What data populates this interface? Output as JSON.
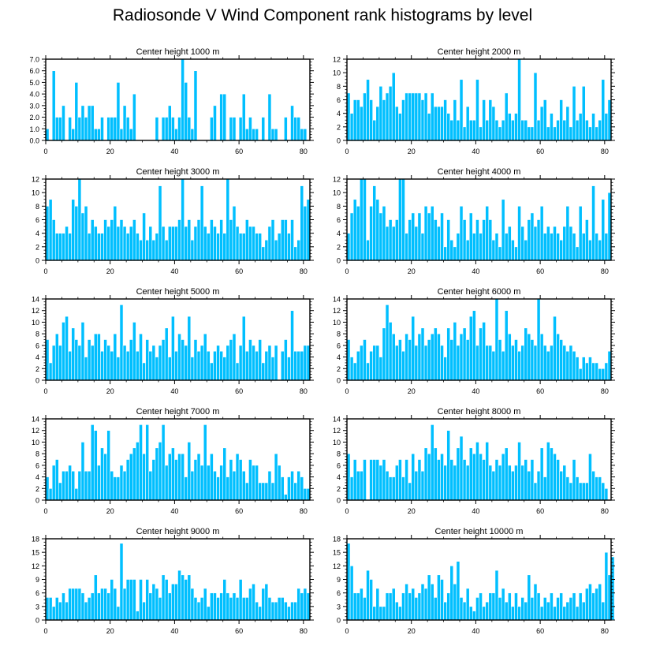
{
  "title": "Radiosonde V Wind Component rank histograms by level",
  "colors": {
    "bar": "#00bfff",
    "bar_edge": "#ffffff",
    "axis": "#000000",
    "background": "#ffffff"
  },
  "chart_data": [
    {
      "type": "bar",
      "title": "Center height 1000 m",
      "xlim": [
        0,
        82
      ],
      "ylim": [
        0,
        7
      ],
      "xticks": [
        0,
        20,
        40,
        60,
        80
      ],
      "yticks": [
        0,
        1,
        2,
        3,
        4,
        5,
        6,
        7
      ],
      "ytick_labels": [
        "0.0",
        "1.0",
        "2.0",
        "3.0",
        "4.0",
        "5.0",
        "6.0",
        "7.0"
      ],
      "values": [
        1,
        0,
        6,
        2,
        2,
        3,
        0,
        2,
        1,
        5,
        2,
        3,
        2,
        3,
        3,
        1,
        1,
        2,
        0,
        2,
        2,
        2,
        5,
        1,
        3,
        2,
        1,
        4,
        0,
        0,
        0,
        0,
        0,
        0,
        2,
        0,
        2,
        2,
        3,
        2,
        1,
        2,
        7,
        5,
        2,
        1,
        6,
        0,
        0,
        0,
        0,
        2,
        3,
        0,
        4,
        4,
        0,
        2,
        2,
        0,
        2,
        4,
        1,
        2,
        1,
        1,
        0,
        2,
        0,
        4,
        1,
        1,
        0,
        0,
        2,
        0,
        3,
        2,
        2,
        1,
        1
      ]
    },
    {
      "type": "bar",
      "title": "Center height 2000 m",
      "xlim": [
        0,
        82
      ],
      "ylim": [
        0,
        12
      ],
      "xticks": [
        0,
        20,
        40,
        60,
        80
      ],
      "yticks": [
        0,
        2,
        4,
        6,
        8,
        10,
        12
      ],
      "ytick_labels": [
        "0",
        "2",
        "4",
        "6",
        "8",
        "10",
        "12"
      ],
      "values": [
        7,
        4,
        6,
        6,
        5,
        7,
        9,
        6,
        3,
        5,
        8,
        6,
        7,
        8,
        10,
        5,
        4,
        6,
        7,
        7,
        7,
        7,
        7,
        6,
        7,
        4,
        7,
        5,
        5,
        5,
        6,
        4,
        3,
        6,
        3,
        9,
        2,
        5,
        3,
        3,
        9,
        2,
        6,
        3,
        6,
        5,
        3,
        2,
        3,
        7,
        4,
        3,
        4,
        12,
        3,
        3,
        2,
        2,
        10,
        3,
        5,
        6,
        2,
        4,
        2,
        3,
        6,
        3,
        5,
        2,
        8,
        3,
        4,
        8,
        3,
        2,
        4,
        2,
        3,
        9,
        4,
        6
      ]
    },
    {
      "type": "bar",
      "title": "Center height 3000 m",
      "xlim": [
        0,
        82
      ],
      "ylim": [
        0,
        12
      ],
      "xticks": [
        0,
        20,
        40,
        60,
        80
      ],
      "yticks": [
        0,
        2,
        4,
        6,
        8,
        10,
        12
      ],
      "ytick_labels": [
        "0",
        "2",
        "4",
        "6",
        "8",
        "10",
        "12"
      ],
      "values": [
        8,
        9,
        6,
        4,
        4,
        4,
        5,
        4,
        9,
        8,
        12,
        7,
        8,
        4,
        6,
        5,
        4,
        4,
        6,
        5,
        6,
        8,
        5,
        6,
        5,
        4,
        5,
        6,
        4,
        3,
        7,
        3,
        5,
        3,
        4,
        11,
        5,
        3,
        5,
        5,
        5,
        6,
        12,
        5,
        6,
        3,
        5,
        6,
        11,
        5,
        4,
        6,
        5,
        4,
        6,
        4,
        12,
        6,
        8,
        5,
        4,
        4,
        6,
        5,
        5,
        4,
        4,
        2,
        3,
        5,
        6,
        3,
        4,
        6,
        6,
        4,
        6,
        2,
        3,
        11,
        8,
        9
      ]
    },
    {
      "type": "bar",
      "title": "Center height 4000 m",
      "xlim": [
        0,
        82
      ],
      "ylim": [
        0,
        12
      ],
      "xticks": [
        0,
        20,
        40,
        60,
        80
      ],
      "yticks": [
        0,
        2,
        4,
        6,
        8,
        10,
        12
      ],
      "ytick_labels": [
        "0",
        "2",
        "4",
        "6",
        "8",
        "10",
        "12"
      ],
      "values": [
        4,
        7,
        9,
        8,
        12,
        12,
        3,
        8,
        11,
        9,
        7,
        8,
        5,
        6,
        5,
        6,
        12,
        12,
        4,
        6,
        7,
        5,
        7,
        4,
        8,
        7,
        8,
        6,
        5,
        7,
        2,
        6,
        3,
        2,
        4,
        8,
        6,
        3,
        7,
        4,
        6,
        4,
        6,
        8,
        6,
        3,
        4,
        2,
        9,
        4,
        5,
        3,
        2,
        8,
        5,
        3,
        6,
        7,
        5,
        6,
        8,
        4,
        5,
        4,
        5,
        4,
        3,
        5,
        8,
        5,
        4,
        2,
        8,
        4,
        6,
        3,
        11,
        4,
        3,
        9,
        4,
        10
      ]
    },
    {
      "type": "bar",
      "title": "Center height 5000 m",
      "xlim": [
        0,
        82
      ],
      "ylim": [
        0,
        14
      ],
      "xticks": [
        0,
        20,
        40,
        60,
        80
      ],
      "yticks": [
        0,
        2,
        4,
        6,
        8,
        10,
        12,
        14
      ],
      "ytick_labels": [
        "0",
        "2",
        "4",
        "6",
        "8",
        "10",
        "12",
        "14"
      ],
      "values": [
        7,
        3,
        6,
        8,
        6,
        10,
        11,
        5,
        9,
        7,
        6,
        10,
        4,
        7,
        6,
        8,
        8,
        5,
        7,
        6,
        5,
        8,
        4,
        13,
        6,
        5,
        7,
        10,
        5,
        8,
        3,
        7,
        5,
        6,
        4,
        6,
        7,
        9,
        4,
        11,
        5,
        8,
        7,
        6,
        11,
        4,
        7,
        5,
        6,
        8,
        5,
        3,
        5,
        6,
        5,
        4,
        6,
        7,
        8,
        3,
        6,
        11,
        5,
        7,
        6,
        5,
        7,
        3,
        5,
        6,
        4,
        6,
        0,
        5,
        7,
        4,
        12,
        5,
        5,
        5,
        6,
        6
      ]
    },
    {
      "type": "bar",
      "title": "Center height 6000 m",
      "xlim": [
        0,
        82
      ],
      "ylim": [
        0,
        14
      ],
      "xticks": [
        0,
        20,
        40,
        60,
        80
      ],
      "yticks": [
        0,
        2,
        4,
        6,
        8,
        10,
        12,
        14
      ],
      "ytick_labels": [
        "0",
        "2",
        "4",
        "6",
        "8",
        "10",
        "12",
        "14"
      ],
      "values": [
        7,
        4,
        3,
        5,
        6,
        7,
        3,
        5,
        6,
        6,
        4,
        9,
        13,
        10,
        8,
        6,
        7,
        5,
        8,
        7,
        11,
        6,
        8,
        9,
        6,
        7,
        8,
        9,
        8,
        6,
        4,
        9,
        7,
        10,
        6,
        8,
        9,
        7,
        11,
        12,
        6,
        9,
        10,
        6,
        6,
        5,
        14,
        7,
        5,
        12,
        8,
        6,
        7,
        5,
        6,
        9,
        8,
        7,
        6,
        14,
        8,
        6,
        5,
        6,
        11,
        8,
        7,
        6,
        5,
        6,
        5,
        4,
        2,
        4,
        3,
        4,
        3,
        3,
        2,
        2,
        3,
        5
      ]
    },
    {
      "type": "bar",
      "title": "Center height 7000 m",
      "xlim": [
        0,
        82
      ],
      "ylim": [
        0,
        14
      ],
      "xticks": [
        0,
        20,
        40,
        60,
        80
      ],
      "yticks": [
        0,
        2,
        4,
        6,
        8,
        10,
        12,
        14
      ],
      "ytick_labels": [
        "0",
        "2",
        "4",
        "6",
        "8",
        "10",
        "12",
        "14"
      ],
      "values": [
        4,
        2,
        6,
        7,
        3,
        5,
        5,
        6,
        5,
        2,
        5,
        10,
        5,
        5,
        13,
        12,
        6,
        9,
        8,
        12,
        5,
        4,
        4,
        6,
        5,
        7,
        8,
        9,
        10,
        13,
        8,
        13,
        5,
        7,
        9,
        10,
        13,
        6,
        8,
        9,
        7,
        8,
        8,
        4,
        10,
        5,
        7,
        8,
        6,
        13,
        6,
        8,
        5,
        4,
        6,
        9,
        4,
        7,
        5,
        8,
        7,
        5,
        3,
        7,
        6,
        6,
        3,
        3,
        3,
        5,
        3,
        8,
        6,
        4,
        1,
        4,
        5,
        3,
        5,
        4,
        2,
        2
      ]
    },
    {
      "type": "bar",
      "title": "Center height 8000 m",
      "xlim": [
        0,
        82
      ],
      "ylim": [
        0,
        14
      ],
      "xticks": [
        0,
        20,
        40,
        60,
        80
      ],
      "yticks": [
        0,
        2,
        4,
        6,
        8,
        10,
        12,
        14
      ],
      "ytick_labels": [
        "0",
        "2",
        "4",
        "6",
        "8",
        "10",
        "12",
        "14"
      ],
      "values": [
        8,
        4,
        7,
        5,
        5,
        7,
        0,
        7,
        7,
        7,
        6,
        7,
        5,
        4,
        4,
        6,
        7,
        4,
        7,
        3,
        8,
        5,
        7,
        5,
        9,
        8,
        13,
        9,
        7,
        8,
        6,
        12,
        7,
        6,
        9,
        11,
        7,
        6,
        9,
        8,
        10,
        8,
        7,
        10,
        6,
        5,
        7,
        6,
        8,
        9,
        6,
        5,
        6,
        10,
        6,
        7,
        5,
        7,
        3,
        5,
        9,
        4,
        10,
        9,
        8,
        7,
        5,
        6,
        4,
        3,
        7,
        4,
        3,
        3,
        3,
        8,
        5,
        4,
        4,
        3,
        2,
        0
      ]
    },
    {
      "type": "bar",
      "title": "Center height 9000 m",
      "xlim": [
        0,
        82
      ],
      "ylim": [
        0,
        18
      ],
      "xticks": [
        0,
        20,
        40,
        60,
        80
      ],
      "yticks": [
        0,
        3,
        6,
        9,
        12,
        15,
        18
      ],
      "ytick_labels": [
        "0",
        "3",
        "6",
        "9",
        "12",
        "15",
        "18"
      ],
      "values": [
        5,
        5,
        3,
        5,
        4,
        6,
        4,
        7,
        7,
        7,
        7,
        6,
        4,
        5,
        6,
        10,
        6,
        7,
        7,
        6,
        9,
        7,
        3,
        17,
        7,
        9,
        9,
        9,
        2,
        9,
        4,
        9,
        6,
        8,
        7,
        5,
        10,
        9,
        6,
        8,
        8,
        11,
        10,
        9,
        10,
        7,
        5,
        4,
        5,
        7,
        3,
        6,
        6,
        5,
        6,
        9,
        6,
        5,
        6,
        5,
        9,
        5,
        5,
        7,
        8,
        4,
        3,
        7,
        8,
        5,
        4,
        4,
        5,
        5,
        4,
        3,
        4,
        4,
        7,
        6,
        7,
        6
      ]
    },
    {
      "type": "bar",
      "title": "Center height 10000 m",
      "xlim": [
        0,
        82
      ],
      "ylim": [
        0,
        18
      ],
      "xticks": [
        0,
        20,
        40,
        60,
        80
      ],
      "yticks": [
        0,
        3,
        6,
        9,
        12,
        15,
        18
      ],
      "ytick_labels": [
        "0",
        "3",
        "6",
        "9",
        "12",
        "15",
        "18"
      ],
      "values": [
        17,
        12,
        6,
        6,
        7,
        5,
        11,
        9,
        3,
        7,
        3,
        3,
        6,
        6,
        7,
        4,
        3,
        6,
        8,
        6,
        7,
        5,
        6,
        8,
        7,
        10,
        8,
        5,
        10,
        9,
        4,
        6,
        12,
        8,
        13,
        5,
        4,
        7,
        3,
        2,
        5,
        6,
        3,
        4,
        6,
        6,
        11,
        5,
        7,
        4,
        6,
        3,
        6,
        3,
        5,
        4,
        10,
        5,
        8,
        6,
        3,
        5,
        4,
        6,
        3,
        5,
        6,
        3,
        4,
        5,
        6,
        3,
        6,
        4,
        7,
        8,
        6,
        7,
        8,
        4,
        15,
        10,
        14
      ]
    }
  ]
}
